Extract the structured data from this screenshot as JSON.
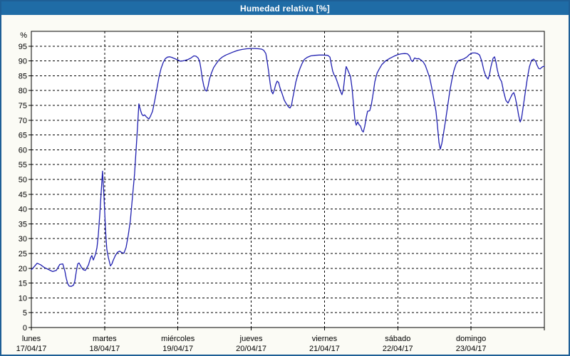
{
  "window": {
    "title": "Humedad relativa [%]",
    "title_bar_color": "#1f6ca6",
    "border_color": "#1e5f96",
    "background_color": "#fbfbf5"
  },
  "chart_data": {
    "type": "line",
    "title": "Humedad relativa [%]",
    "ylabel": "%",
    "grid": true,
    "legend": "none",
    "plot_bg_color": "#ffffff",
    "grid_color": "#000000",
    "line_color": "#2020b0",
    "y_axis": {
      "min": 0,
      "max": 100,
      "tick_step": 5,
      "unit_label": "%",
      "tick_labels": [
        "0",
        "5",
        "10",
        "15",
        "20",
        "25",
        "30",
        "35",
        "40",
        "45",
        "50",
        "55",
        "60",
        "65",
        "70",
        "75",
        "80",
        "85",
        "90",
        "95"
      ]
    },
    "x_axis": {
      "range_hours": [
        0,
        168
      ],
      "gridline_every_hours": 24,
      "days": [
        {
          "name": "lunes",
          "date": "17/04/17"
        },
        {
          "name": "martes",
          "date": "18/04/17"
        },
        {
          "name": "miércoles",
          "date": "19/04/17"
        },
        {
          "name": "jueves",
          "date": "20/04/17"
        },
        {
          "name": "viernes",
          "date": "21/04/17"
        },
        {
          "name": "sábado",
          "date": "22/04/17"
        },
        {
          "name": "domingo",
          "date": "23/04/17"
        }
      ]
    },
    "series": [
      {
        "name": "Humedad relativa",
        "points": [
          [
            0,
            19.5
          ],
          [
            0.9,
            20.5
          ],
          [
            1.9,
            21.7
          ],
          [
            3,
            21.2
          ],
          [
            4.2,
            20.3
          ],
          [
            5.6,
            19.6
          ],
          [
            7,
            18.9
          ],
          [
            8.2,
            19.3
          ],
          [
            9.3,
            21.3
          ],
          [
            10.3,
            21.5
          ],
          [
            11,
            19
          ],
          [
            11.4,
            16.7
          ],
          [
            11.9,
            14.8
          ],
          [
            12.4,
            14
          ],
          [
            13.1,
            13.9
          ],
          [
            13.8,
            14.3
          ],
          [
            14.2,
            15.5
          ],
          [
            14.7,
            18.8
          ],
          [
            15.2,
            21.5
          ],
          [
            15.6,
            21.8
          ],
          [
            16.3,
            20.5
          ],
          [
            17,
            19.5
          ],
          [
            17.7,
            19.3
          ],
          [
            18.7,
            21.1
          ],
          [
            19.4,
            23.5
          ],
          [
            19.8,
            24.3
          ],
          [
            20.3,
            22.8
          ],
          [
            21,
            24.7
          ],
          [
            21.5,
            27
          ],
          [
            21.9,
            31
          ],
          [
            22.4,
            38
          ],
          [
            22.9,
            46
          ],
          [
            23.3,
            52.8
          ],
          [
            23.8,
            44
          ],
          [
            24.3,
            33
          ],
          [
            24.5,
            29.5
          ],
          [
            24.7,
            26.5
          ],
          [
            25.2,
            23.7
          ],
          [
            25.9,
            20.8
          ],
          [
            26.4,
            21.5
          ],
          [
            26.8,
            22.7
          ],
          [
            27.5,
            24.3
          ],
          [
            28.2,
            25.4
          ],
          [
            28.9,
            25.8
          ],
          [
            29.6,
            25.3
          ],
          [
            30.3,
            25.1
          ],
          [
            31,
            27
          ],
          [
            31.7,
            31
          ],
          [
            32.4,
            36
          ],
          [
            33.1,
            44
          ],
          [
            33.8,
            52
          ],
          [
            34.3,
            60
          ],
          [
            34.8,
            68
          ],
          [
            35.2,
            75.5
          ],
          [
            35.7,
            73.5
          ],
          [
            36.2,
            72
          ],
          [
            36.6,
            71.5
          ],
          [
            37.1,
            71.8
          ],
          [
            37.6,
            71.2
          ],
          [
            38,
            70.8
          ],
          [
            38.5,
            70.4
          ],
          [
            39,
            71.3
          ],
          [
            39.7,
            73
          ],
          [
            40.4,
            76.5
          ],
          [
            41.1,
            80.5
          ],
          [
            41.8,
            84.5
          ],
          [
            42.5,
            87.5
          ],
          [
            43.2,
            89.5
          ],
          [
            43.9,
            90.8
          ],
          [
            44.6,
            91.3
          ],
          [
            45.3,
            91.4
          ],
          [
            46,
            91.2
          ],
          [
            46.7,
            90.9
          ],
          [
            47.4,
            90.6
          ],
          [
            48.1,
            90.3
          ],
          [
            48.8,
            89.9
          ],
          [
            49.5,
            90
          ],
          [
            50.4,
            90.2
          ],
          [
            51.3,
            90.5
          ],
          [
            52.3,
            91
          ],
          [
            53.2,
            91.7
          ],
          [
            53.9,
            91.6
          ],
          [
            54.6,
            91
          ],
          [
            55.1,
            90
          ],
          [
            55.5,
            87.5
          ],
          [
            56,
            84
          ],
          [
            56.5,
            81.5
          ],
          [
            56.9,
            80.2
          ],
          [
            57.4,
            79.8
          ],
          [
            57.9,
            81.5
          ],
          [
            58.3,
            83.8
          ],
          [
            59,
            86
          ],
          [
            59.7,
            87.8
          ],
          [
            60.7,
            89.3
          ],
          [
            61.6,
            90.5
          ],
          [
            62.5,
            91.3
          ],
          [
            63.7,
            92
          ],
          [
            64.9,
            92.5
          ],
          [
            66.3,
            93.1
          ],
          [
            67.7,
            93.6
          ],
          [
            69.1,
            93.9
          ],
          [
            70.5,
            94.1
          ],
          [
            71.9,
            94.2
          ],
          [
            73.3,
            94.2
          ],
          [
            74.4,
            94.1
          ],
          [
            75.4,
            94
          ],
          [
            76.1,
            93.6
          ],
          [
            76.8,
            92.5
          ],
          [
            77.2,
            90
          ],
          [
            77.7,
            86.5
          ],
          [
            78.2,
            82.5
          ],
          [
            78.6,
            79.8
          ],
          [
            79.1,
            78.9
          ],
          [
            79.6,
            80.3
          ],
          [
            80,
            82
          ],
          [
            80.5,
            83.2
          ],
          [
            81,
            82.7
          ],
          [
            81.4,
            81
          ],
          [
            82.1,
            79
          ],
          [
            82.8,
            76.8
          ],
          [
            83.5,
            75.5
          ],
          [
            84.2,
            74.5
          ],
          [
            84.7,
            74.1
          ],
          [
            85.2,
            75
          ],
          [
            85.6,
            77.5
          ],
          [
            86.1,
            80
          ],
          [
            86.6,
            82.8
          ],
          [
            87.3,
            85.4
          ],
          [
            88,
            87.5
          ],
          [
            88.7,
            89.2
          ],
          [
            89.4,
            90.5
          ],
          [
            90.3,
            91.2
          ],
          [
            91.5,
            91.7
          ],
          [
            92.9,
            91.9
          ],
          [
            94.3,
            92
          ],
          [
            95.7,
            92
          ],
          [
            97.1,
            91.9
          ],
          [
            97.8,
            91.3
          ],
          [
            98.2,
            89
          ],
          [
            98.7,
            86.5
          ],
          [
            99.2,
            85.2
          ],
          [
            99.6,
            84.6
          ],
          [
            100.1,
            83.2
          ],
          [
            100.8,
            81
          ],
          [
            101.3,
            79.6
          ],
          [
            101.7,
            78.6
          ],
          [
            102.2,
            80.5
          ],
          [
            102.7,
            85
          ],
          [
            103.1,
            88.1
          ],
          [
            103.6,
            87
          ],
          [
            104.1,
            85.8
          ],
          [
            104.5,
            84.8
          ],
          [
            105,
            81
          ],
          [
            105.5,
            75.5
          ],
          [
            105.9,
            70.5
          ],
          [
            106.4,
            68.3
          ],
          [
            106.9,
            69.4
          ],
          [
            107.3,
            68.5
          ],
          [
            107.8,
            68
          ],
          [
            108.3,
            66.5
          ],
          [
            108.7,
            66
          ],
          [
            109.2,
            68
          ],
          [
            109.7,
            71
          ],
          [
            110.1,
            73
          ],
          [
            110.8,
            73.2
          ],
          [
            111.3,
            75
          ],
          [
            111.8,
            78
          ],
          [
            112.5,
            83
          ],
          [
            113.2,
            85.8
          ],
          [
            113.9,
            87.2
          ],
          [
            114.8,
            88.8
          ],
          [
            116,
            90
          ],
          [
            117.4,
            90.9
          ],
          [
            118.8,
            91.6
          ],
          [
            119.9,
            92.1
          ],
          [
            121.1,
            92.4
          ],
          [
            122.3,
            92.5
          ],
          [
            123.2,
            92.4
          ],
          [
            123.9,
            91.6
          ],
          [
            124.4,
            90.2
          ],
          [
            124.8,
            89.8
          ],
          [
            125.5,
            91
          ],
          [
            126.2,
            90.7
          ],
          [
            126.9,
            90.8
          ],
          [
            127.6,
            90.3
          ],
          [
            128.3,
            89.7
          ],
          [
            129,
            88.5
          ],
          [
            129.7,
            86.5
          ],
          [
            130.4,
            84.5
          ],
          [
            131.1,
            81
          ],
          [
            131.8,
            77
          ],
          [
            132.5,
            73
          ],
          [
            133,
            68
          ],
          [
            133.5,
            62.5
          ],
          [
            133.9,
            60.2
          ],
          [
            134.4,
            62
          ],
          [
            134.9,
            65
          ],
          [
            135.6,
            69.5
          ],
          [
            136.3,
            74.5
          ],
          [
            137,
            79.5
          ],
          [
            137.7,
            83.5
          ],
          [
            138.4,
            86.8
          ],
          [
            139.1,
            89
          ],
          [
            139.8,
            90.1
          ],
          [
            140.7,
            90.4
          ],
          [
            141.6,
            90.7
          ],
          [
            142.6,
            91.3
          ],
          [
            143.5,
            92.2
          ],
          [
            144.4,
            92.7
          ],
          [
            145.4,
            92.7
          ],
          [
            146.1,
            92.5
          ],
          [
            146.8,
            92
          ],
          [
            147.5,
            90
          ],
          [
            148.2,
            86.8
          ],
          [
            148.9,
            84.7
          ],
          [
            149.6,
            83.9
          ],
          [
            150,
            85.3
          ],
          [
            150.5,
            88
          ],
          [
            151.2,
            90.9
          ],
          [
            151.7,
            91.4
          ],
          [
            152.1,
            89.8
          ],
          [
            152.6,
            87
          ],
          [
            153.1,
            85
          ],
          [
            153.5,
            83.9
          ],
          [
            154,
            83
          ],
          [
            154.7,
            79.5
          ],
          [
            155.4,
            76.7
          ],
          [
            156.1,
            75.8
          ],
          [
            156.8,
            77.3
          ],
          [
            157.5,
            78.8
          ],
          [
            158,
            79.3
          ],
          [
            158.4,
            78
          ],
          [
            159.1,
            74.5
          ],
          [
            159.6,
            71.5
          ],
          [
            160.1,
            69.4
          ],
          [
            160.5,
            70.5
          ],
          [
            161,
            74
          ],
          [
            161.7,
            79
          ],
          [
            162.4,
            84
          ],
          [
            163.1,
            88
          ],
          [
            163.8,
            90.2
          ],
          [
            164.5,
            90.6
          ],
          [
            165.2,
            89.8
          ],
          [
            165.6,
            88.6
          ],
          [
            166.1,
            87.5
          ],
          [
            166.6,
            87.3
          ],
          [
            167,
            87.7
          ],
          [
            167.5,
            88.1
          ],
          [
            168,
            88.2
          ]
        ]
      }
    ]
  }
}
